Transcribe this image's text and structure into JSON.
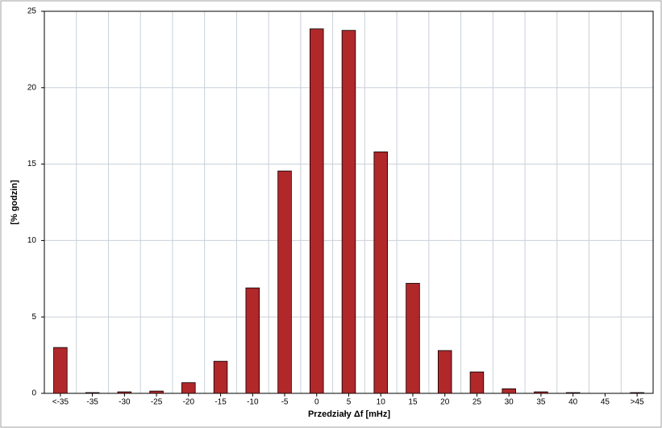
{
  "chart_data": {
    "type": "bar",
    "x_label": "Przedziały Δf [mHz]",
    "y_label": "[% godzin]",
    "categories": [
      "<-35",
      "-35",
      "-30",
      "-25",
      "-20",
      "-15",
      "-10",
      "-5",
      "0",
      "5",
      "10",
      "15",
      "20",
      "25",
      "30",
      "35",
      "40",
      "45",
      ">45"
    ],
    "values": [
      3.0,
      0.05,
      0.1,
      0.15,
      0.7,
      2.1,
      6.9,
      14.55,
      23.85,
      23.75,
      15.8,
      7.2,
      2.8,
      1.4,
      0.3,
      0.1,
      0.05,
      0,
      0.05
    ],
    "color": "#b0282a",
    "ylim": [
      0,
      25
    ],
    "yticks": [
      0,
      5,
      10,
      15,
      20,
      25
    ],
    "grid": true
  }
}
